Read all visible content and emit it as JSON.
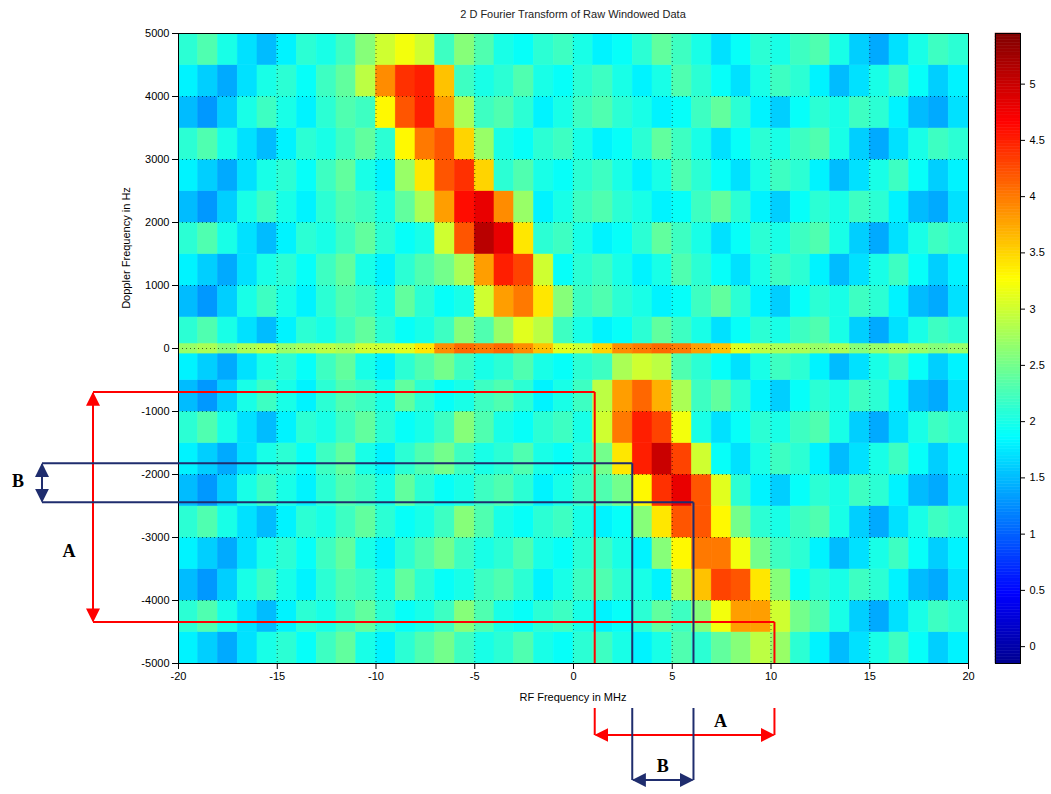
{
  "chart_data": {
    "type": "heatmap",
    "title": "2 D Fourier Transform of Raw Windowed Data",
    "x_label": "RF Frequency in MHz",
    "y_label": "Doppler Frequency in Hz",
    "xlim": [
      -20,
      20
    ],
    "ylim": [
      -5000,
      5000
    ],
    "xticks": [
      -20,
      -15,
      -10,
      -5,
      0,
      5,
      10,
      15,
      20
    ],
    "yticks": [
      -5000,
      -4000,
      -3000,
      -2000,
      -1000,
      0,
      1000,
      2000,
      3000,
      4000,
      5000
    ],
    "grid": true,
    "x_edges": [
      -20,
      -19,
      -18,
      -17,
      -16,
      -15,
      -14,
      -13,
      -12,
      -11,
      -10,
      -9,
      -8,
      -7,
      -6,
      -5,
      -4,
      -3,
      -2,
      -1,
      0,
      1,
      2,
      3,
      4,
      5,
      6,
      7,
      8,
      9,
      10,
      11,
      12,
      13,
      14,
      15,
      16,
      17,
      18,
      19,
      20
    ],
    "y_edges": [
      -5000,
      -4500,
      -4000,
      -3500,
      -3000,
      -2500,
      -2000,
      -1500,
      -1000,
      -500,
      -80,
      80,
      500,
      1000,
      1500,
      2000,
      2500,
      3000,
      3500,
      4000,
      4500,
      5000
    ],
    "values": [
      [
        1.8,
        1.6,
        1.4,
        1.7,
        2.0,
        2.1,
        1.9,
        2.2,
        2.4,
        2.0,
        1.8,
        2.1,
        2.3,
        2.5,
        2.2,
        2.0,
        2.1,
        2.3,
        2.0,
        1.9,
        2.1,
        2.2,
        2.0,
        1.8,
        2.0,
        2.3,
        2.1,
        2.4,
        2.6,
        2.9,
        2.7,
        2.1,
        1.8,
        1.5,
        1.7,
        2.0,
        2.2,
        1.9,
        1.6,
        1.8
      ],
      [
        2.1,
        2.3,
        2.0,
        1.7,
        1.5,
        1.8,
        2.1,
        2.0,
        2.2,
        2.4,
        2.1,
        1.9,
        2.0,
        2.2,
        2.6,
        2.3,
        2.0,
        1.9,
        2.1,
        2.2,
        2.0,
        1.8,
        1.9,
        2.1,
        2.4,
        2.2,
        2.6,
        3.2,
        3.8,
        3.8,
        3.0,
        2.5,
        2.3,
        2.0,
        1.6,
        1.4,
        1.7,
        2.0,
        2.2,
        2.1
      ],
      [
        1.5,
        1.3,
        1.6,
        2.0,
        2.2,
        2.0,
        1.8,
        2.1,
        2.3,
        2.2,
        2.0,
        2.4,
        2.1,
        1.9,
        2.0,
        2.2,
        2.3,
        2.1,
        1.8,
        2.0,
        2.2,
        2.3,
        2.1,
        2.0,
        1.8,
        2.8,
        3.6,
        4.3,
        4.2,
        3.4,
        2.6,
        1.9,
        2.1,
        2.0,
        2.2,
        2.1,
        1.8,
        1.5,
        1.4,
        1.7
      ],
      [
        1.8,
        1.6,
        1.4,
        1.7,
        2.0,
        2.1,
        1.9,
        2.2,
        2.4,
        2.0,
        1.8,
        2.1,
        2.3,
        2.5,
        2.2,
        2.0,
        2.1,
        2.3,
        2.0,
        1.9,
        2.1,
        2.2,
        2.0,
        1.8,
        2.6,
        3.3,
        4.0,
        4.0,
        3.2,
        2.5,
        2.2,
        2.1,
        1.8,
        1.5,
        1.7,
        2.0,
        2.2,
        1.9,
        1.6,
        1.8
      ],
      [
        2.1,
        2.3,
        2.0,
        1.7,
        1.5,
        1.8,
        2.1,
        2.0,
        2.2,
        2.4,
        2.1,
        1.9,
        2.0,
        2.2,
        2.6,
        2.3,
        2.0,
        1.9,
        2.1,
        2.2,
        2.0,
        1.8,
        1.9,
        2.6,
        3.4,
        4.2,
        4.2,
        3.3,
        2.5,
        2.1,
        2.0,
        2.2,
        2.3,
        2.0,
        1.6,
        1.4,
        1.7,
        2.0,
        2.2,
        2.1
      ],
      [
        1.5,
        1.3,
        1.6,
        2.0,
        2.2,
        2.0,
        1.8,
        2.1,
        2.3,
        2.2,
        2.0,
        2.4,
        2.1,
        1.9,
        2.0,
        2.2,
        2.3,
        2.1,
        1.8,
        2.0,
        2.2,
        2.3,
        2.5,
        3.3,
        4.4,
        4.8,
        4.2,
        3.1,
        2.1,
        1.8,
        1.6,
        1.9,
        2.1,
        2.0,
        2.2,
        2.1,
        1.8,
        1.5,
        1.4,
        1.7
      ],
      [
        1.8,
        1.6,
        1.4,
        1.7,
        2.0,
        2.1,
        1.9,
        2.2,
        2.4,
        2.0,
        1.8,
        2.1,
        2.3,
        2.5,
        2.2,
        2.0,
        2.1,
        2.3,
        2.0,
        1.9,
        2.1,
        2.5,
        3.4,
        4.5,
        5.0,
        4.3,
        3.0,
        1.9,
        1.7,
        2.0,
        2.2,
        2.1,
        1.8,
        1.5,
        1.7,
        2.0,
        2.2,
        1.9,
        1.6,
        1.8
      ],
      [
        2.1,
        2.3,
        2.0,
        1.7,
        1.5,
        1.8,
        2.1,
        2.0,
        2.2,
        2.4,
        2.1,
        1.9,
        2.0,
        2.2,
        2.6,
        2.3,
        2.0,
        1.9,
        2.1,
        2.2,
        2.0,
        3.0,
        4.0,
        4.5,
        4.3,
        3.2,
        2.0,
        1.7,
        1.9,
        2.1,
        2.0,
        2.2,
        2.3,
        2.0,
        1.6,
        1.4,
        1.7,
        2.0,
        2.2,
        2.1
      ],
      [
        1.5,
        1.3,
        1.6,
        2.0,
        2.2,
        2.0,
        1.8,
        2.1,
        2.3,
        2.2,
        2.0,
        2.4,
        2.1,
        1.9,
        2.0,
        2.2,
        2.3,
        2.1,
        1.8,
        2.0,
        2.2,
        2.9,
        3.8,
        4.1,
        3.7,
        2.8,
        2.2,
        2.4,
        2.1,
        1.8,
        1.6,
        1.9,
        2.1,
        2.0,
        2.2,
        2.1,
        1.8,
        1.5,
        1.4,
        1.7
      ],
      [
        1.8,
        1.6,
        1.4,
        1.7,
        2.0,
        2.1,
        1.9,
        2.2,
        2.4,
        2.0,
        1.8,
        2.1,
        2.3,
        2.5,
        2.2,
        2.0,
        2.1,
        2.3,
        2.0,
        1.9,
        2.1,
        2.2,
        2.8,
        3.0,
        2.9,
        2.3,
        2.1,
        1.9,
        1.7,
        2.0,
        2.2,
        2.1,
        1.8,
        1.5,
        1.7,
        2.0,
        2.2,
        1.9,
        1.6,
        1.8
      ],
      [
        2.7,
        2.8,
        2.6,
        2.8,
        2.9,
        2.7,
        2.8,
        2.9,
        2.8,
        3.0,
        3.0,
        3.1,
        3.4,
        3.9,
        4.1,
        4.0,
        4.1,
        3.9,
        3.6,
        3.1,
        3.0,
        3.5,
        3.9,
        4.0,
        4.1,
        4.0,
        3.8,
        3.6,
        3.1,
        2.9,
        2.8,
        2.8,
        2.7,
        2.8,
        2.6,
        2.7,
        2.8,
        2.7,
        2.6,
        2.7
      ],
      [
        2.1,
        2.3,
        2.0,
        1.7,
        1.5,
        1.8,
        2.1,
        2.0,
        2.2,
        2.4,
        2.1,
        1.9,
        2.0,
        2.2,
        2.6,
        2.3,
        2.7,
        3.1,
        2.9,
        2.2,
        2.0,
        1.8,
        1.9,
        2.1,
        2.4,
        2.2,
        2.0,
        1.7,
        1.9,
        2.1,
        2.0,
        2.2,
        2.3,
        2.0,
        1.6,
        1.4,
        1.7,
        2.0,
        2.2,
        2.1
      ],
      [
        1.5,
        1.3,
        1.6,
        2.0,
        2.2,
        2.0,
        1.8,
        2.1,
        2.3,
        2.2,
        2.0,
        2.4,
        2.1,
        1.9,
        2.0,
        3.0,
        3.8,
        4.0,
        3.4,
        2.6,
        2.2,
        2.3,
        2.1,
        2.0,
        1.8,
        1.9,
        2.2,
        2.4,
        2.1,
        1.8,
        1.6,
        1.9,
        2.1,
        2.0,
        2.2,
        2.1,
        1.8,
        1.5,
        1.4,
        1.7
      ],
      [
        1.8,
        1.6,
        1.4,
        1.7,
        2.0,
        2.1,
        1.9,
        2.2,
        2.4,
        2.0,
        1.8,
        2.1,
        2.3,
        2.5,
        2.8,
        3.8,
        4.5,
        4.3,
        3.0,
        1.9,
        2.1,
        2.2,
        2.0,
        1.8,
        2.0,
        2.3,
        2.1,
        1.9,
        1.7,
        2.0,
        2.2,
        2.1,
        1.8,
        1.5,
        1.7,
        2.0,
        2.2,
        1.9,
        1.6,
        1.8
      ],
      [
        2.1,
        2.3,
        2.0,
        1.7,
        1.5,
        1.8,
        2.1,
        2.0,
        2.2,
        2.4,
        2.1,
        1.9,
        2.0,
        3.0,
        4.2,
        5.1,
        4.8,
        3.4,
        2.1,
        2.2,
        2.0,
        1.8,
        1.9,
        2.1,
        2.4,
        2.2,
        2.0,
        1.7,
        1.9,
        2.1,
        2.0,
        2.2,
        2.3,
        2.0,
        1.6,
        1.4,
        1.7,
        2.0,
        2.2,
        2.1
      ],
      [
        1.5,
        1.3,
        1.6,
        2.0,
        2.2,
        2.0,
        1.8,
        2.1,
        2.3,
        2.2,
        2.0,
        2.4,
        2.8,
        3.8,
        4.6,
        4.8,
        3.9,
        2.7,
        1.8,
        2.0,
        2.2,
        2.3,
        2.1,
        2.0,
        1.8,
        1.9,
        2.2,
        2.4,
        2.1,
        1.8,
        1.6,
        1.9,
        2.1,
        2.0,
        2.2,
        2.1,
        1.8,
        1.5,
        1.4,
        1.7
      ],
      [
        1.8,
        1.6,
        1.4,
        1.7,
        2.0,
        2.1,
        1.9,
        2.2,
        2.4,
        2.0,
        1.8,
        2.7,
        3.4,
        4.2,
        4.4,
        3.5,
        2.1,
        2.3,
        2.0,
        1.9,
        2.1,
        2.2,
        2.0,
        1.8,
        2.0,
        2.3,
        2.1,
        1.9,
        1.7,
        2.0,
        2.2,
        2.1,
        1.8,
        1.5,
        1.7,
        2.0,
        2.2,
        1.9,
        1.6,
        1.8
      ],
      [
        2.1,
        2.3,
        2.0,
        1.7,
        1.5,
        1.8,
        2.1,
        2.0,
        2.2,
        2.4,
        2.1,
        3.3,
        4.0,
        4.2,
        3.5,
        2.7,
        2.0,
        1.9,
        2.1,
        2.2,
        2.0,
        1.8,
        1.9,
        2.1,
        2.4,
        2.2,
        2.0,
        1.7,
        1.9,
        2.1,
        2.0,
        2.2,
        2.3,
        2.0,
        1.6,
        1.4,
        1.7,
        2.0,
        2.2,
        2.1
      ],
      [
        1.5,
        1.3,
        1.6,
        2.0,
        2.2,
        2.0,
        1.8,
        2.1,
        2.3,
        2.2,
        3.3,
        4.2,
        4.5,
        3.8,
        2.8,
        2.2,
        2.3,
        2.1,
        1.8,
        2.0,
        2.2,
        2.3,
        2.1,
        2.0,
        1.8,
        1.9,
        2.2,
        2.4,
        2.1,
        1.8,
        1.6,
        1.9,
        2.1,
        2.0,
        2.2,
        2.1,
        1.8,
        1.5,
        1.4,
        1.7
      ],
      [
        1.8,
        1.6,
        1.4,
        1.7,
        2.0,
        2.1,
        1.9,
        2.2,
        2.4,
        2.9,
        3.9,
        4.4,
        4.5,
        3.6,
        2.2,
        2.0,
        2.1,
        2.3,
        2.0,
        1.9,
        2.1,
        2.2,
        2.0,
        1.8,
        2.0,
        2.3,
        2.1,
        1.9,
        1.7,
        2.0,
        2.2,
        2.1,
        1.8,
        1.5,
        1.7,
        2.0,
        2.2,
        1.9,
        1.6,
        1.8
      ],
      [
        2.1,
        2.3,
        2.0,
        1.7,
        1.5,
        1.8,
        2.1,
        2.0,
        2.2,
        2.6,
        3.0,
        3.2,
        3.0,
        2.2,
        2.6,
        2.3,
        2.0,
        1.9,
        2.1,
        2.2,
        2.0,
        1.8,
        1.9,
        2.1,
        2.4,
        2.2,
        2.0,
        1.7,
        1.9,
        2.1,
        2.0,
        2.2,
        2.3,
        2.0,
        1.6,
        1.4,
        1.7,
        2.0,
        2.2,
        2.1
      ]
    ],
    "color_range": [
      -0.15,
      5.45
    ],
    "color_ticks": [
      0,
      0.5,
      1,
      1.5,
      2,
      2.5,
      3,
      3.5,
      4,
      4.5,
      5
    ],
    "annotations": [
      {
        "label": "A",
        "color": "#ff0000",
        "points": [
          [
            1.1,
            -700
          ],
          [
            10.2,
            -4350
          ]
        ]
      },
      {
        "label": "B",
        "color": "#1f2d6e",
        "points": [
          [
            3.0,
            -1830
          ],
          [
            6.1,
            -2450
          ]
        ]
      }
    ]
  }
}
